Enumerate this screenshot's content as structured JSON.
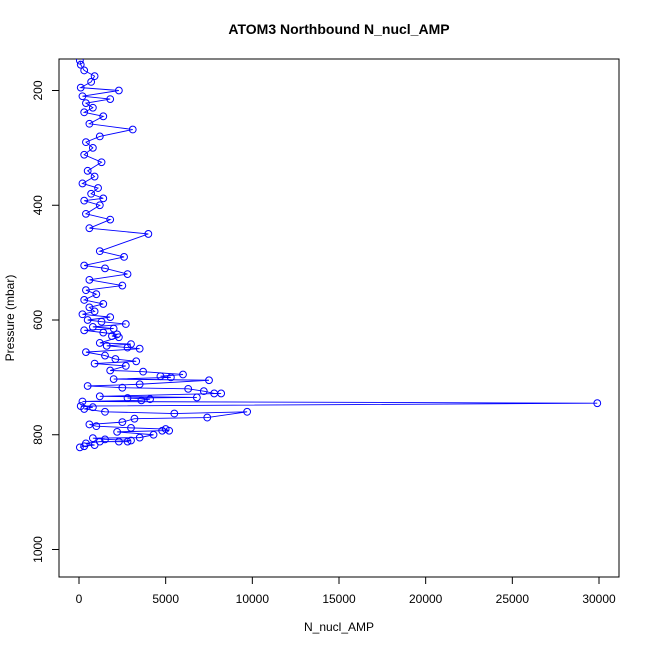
{
  "chart_data": {
    "type": "scatter",
    "title": "ATOM3 Northbound N_nucl_AMP",
    "xlabel": "N_nucl_AMP",
    "ylabel": "Pressure (mbar)",
    "xlim": [
      -1000,
      31000
    ],
    "ylim": [
      1045,
      145
    ],
    "y_reversed": true,
    "x_ticks": [
      0,
      5000,
      10000,
      15000,
      20000,
      25000,
      30000
    ],
    "y_ticks": [
      200,
      400,
      600,
      800,
      1000
    ],
    "x_tick_labels": [
      "0",
      "5000",
      "10000",
      "15000",
      "20000",
      "25000",
      "30000"
    ],
    "y_tick_labels": [
      "200",
      "400",
      "600",
      "800",
      "1000"
    ],
    "grid": false,
    "series": [
      {
        "color": "#0000ff",
        "style": "line+points",
        "points": [
          [
            50,
            822
          ],
          [
            300,
            820
          ],
          [
            900,
            818
          ],
          [
            400,
            815
          ],
          [
            1200,
            812
          ],
          [
            2300,
            812
          ],
          [
            2800,
            812
          ],
          [
            3000,
            810
          ],
          [
            1500,
            808
          ],
          [
            800,
            806
          ],
          [
            3500,
            805
          ],
          [
            4300,
            800
          ],
          [
            2200,
            795
          ],
          [
            4800,
            793
          ],
          [
            5200,
            793
          ],
          [
            5000,
            790
          ],
          [
            3000,
            788
          ],
          [
            1000,
            785
          ],
          [
            600,
            782
          ],
          [
            2500,
            778
          ],
          [
            3200,
            772
          ],
          [
            7400,
            770
          ],
          [
            9700,
            760
          ],
          [
            5500,
            763
          ],
          [
            1500,
            760
          ],
          [
            300,
            755
          ],
          [
            800,
            752
          ],
          [
            100,
            750
          ],
          [
            29900,
            745
          ],
          [
            200,
            742
          ],
          [
            3600,
            740
          ],
          [
            4100,
            738
          ],
          [
            2800,
            736
          ],
          [
            6800,
            735
          ],
          [
            1200,
            733
          ],
          [
            8200,
            728
          ],
          [
            7800,
            728
          ],
          [
            7200,
            724
          ],
          [
            6300,
            720
          ],
          [
            2500,
            718
          ],
          [
            500,
            715
          ],
          [
            3500,
            712
          ],
          [
            7500,
            705
          ],
          [
            2000,
            703
          ],
          [
            5300,
            700
          ],
          [
            4700,
            698
          ],
          [
            6000,
            695
          ],
          [
            3700,
            690
          ],
          [
            1800,
            688
          ],
          [
            2700,
            680
          ],
          [
            900,
            676
          ],
          [
            3300,
            672
          ],
          [
            2100,
            668
          ],
          [
            1500,
            662
          ],
          [
            400,
            656
          ],
          [
            3500,
            650
          ],
          [
            2800,
            648
          ],
          [
            1600,
            645
          ],
          [
            3000,
            642
          ],
          [
            1200,
            640
          ],
          [
            2300,
            630
          ],
          [
            1900,
            628
          ],
          [
            2200,
            625
          ],
          [
            1400,
            622
          ],
          [
            300,
            618
          ],
          [
            2000,
            615
          ],
          [
            800,
            612
          ],
          [
            2700,
            607
          ],
          [
            1300,
            603
          ],
          [
            500,
            600
          ],
          [
            1800,
            595
          ],
          [
            200,
            590
          ],
          [
            900,
            585
          ],
          [
            600,
            578
          ],
          [
            1400,
            572
          ],
          [
            300,
            565
          ],
          [
            1000,
            555
          ],
          [
            400,
            548
          ],
          [
            2500,
            540
          ],
          [
            600,
            530
          ],
          [
            2800,
            520
          ],
          [
            1500,
            510
          ],
          [
            300,
            505
          ],
          [
            2600,
            490
          ],
          [
            1200,
            480
          ],
          [
            4000,
            450
          ],
          [
            600,
            440
          ],
          [
            1800,
            425
          ],
          [
            400,
            415
          ],
          [
            1200,
            400
          ],
          [
            300,
            392
          ],
          [
            1400,
            388
          ],
          [
            700,
            380
          ],
          [
            1100,
            370
          ],
          [
            200,
            362
          ],
          [
            900,
            350
          ],
          [
            500,
            340
          ],
          [
            1300,
            325
          ],
          [
            300,
            312
          ],
          [
            800,
            300
          ],
          [
            400,
            290
          ],
          [
            1200,
            280
          ],
          [
            3100,
            268
          ],
          [
            600,
            258
          ],
          [
            1400,
            245
          ],
          [
            300,
            238
          ],
          [
            800,
            230
          ],
          [
            400,
            222
          ],
          [
            1800,
            215
          ],
          [
            200,
            210
          ],
          [
            2300,
            200
          ],
          [
            100,
            195
          ],
          [
            700,
            185
          ],
          [
            900,
            175
          ],
          [
            300,
            165
          ],
          [
            100,
            155
          ],
          [
            50,
            148
          ]
        ]
      }
    ]
  }
}
